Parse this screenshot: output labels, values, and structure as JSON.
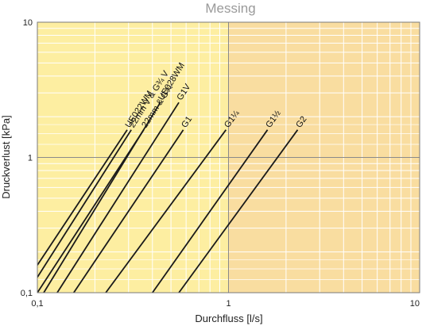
{
  "chart_data": {
    "type": "line",
    "title": "Messing",
    "xlabel": "Durchfluss [l/s]",
    "ylabel": "Druckverlust [kPa]",
    "x_scale": "log",
    "y_scale": "log",
    "xlim": [
      0.1,
      10
    ],
    "ylim": [
      0.1,
      10
    ],
    "x_ticks": [
      "0,1",
      "1",
      "10"
    ],
    "y_ticks": [
      "0,1",
      "1",
      "10"
    ],
    "grid": true,
    "background_colors": {
      "left": "#fdeea1",
      "right": "#f9dda0"
    },
    "grid_color_minor": "#ffffff",
    "grid_color_major": "#8a8a8a",
    "line_color": "#1a1a1a",
    "series": [
      {
        "name": "UE022WM",
        "x": [
          0.1,
          0.295
        ],
        "y": [
          0.16,
          1.6
        ]
      },
      {
        "name": "22mm V & G¾ V",
        "x": [
          0.1,
          0.31
        ],
        "y": [
          0.13,
          1.6
        ]
      },
      {
        "name": "22mm & G¾",
        "x": [
          0.1,
          0.36
        ],
        "y": [
          0.1,
          1.6
        ]
      },
      {
        "name": "UE028WM",
        "x": [
          0.108,
          0.44
        ],
        "y": [
          0.1,
          2.55
        ]
      },
      {
        "name": "G1V",
        "x": [
          0.127,
          0.55
        ],
        "y": [
          0.1,
          2.55
        ]
      },
      {
        "name": "G1",
        "x": [
          0.155,
          0.58
        ],
        "y": [
          0.1,
          1.6
        ]
      },
      {
        "name": "G1¼",
        "x": [
          0.228,
          0.97
        ],
        "y": [
          0.1,
          1.6
        ]
      },
      {
        "name": "G1½",
        "x": [
          0.4,
          1.6
        ],
        "y": [
          0.1,
          1.6
        ]
      },
      {
        "name": "G2",
        "x": [
          0.55,
          2.3
        ],
        "y": [
          0.1,
          1.6
        ]
      }
    ]
  }
}
